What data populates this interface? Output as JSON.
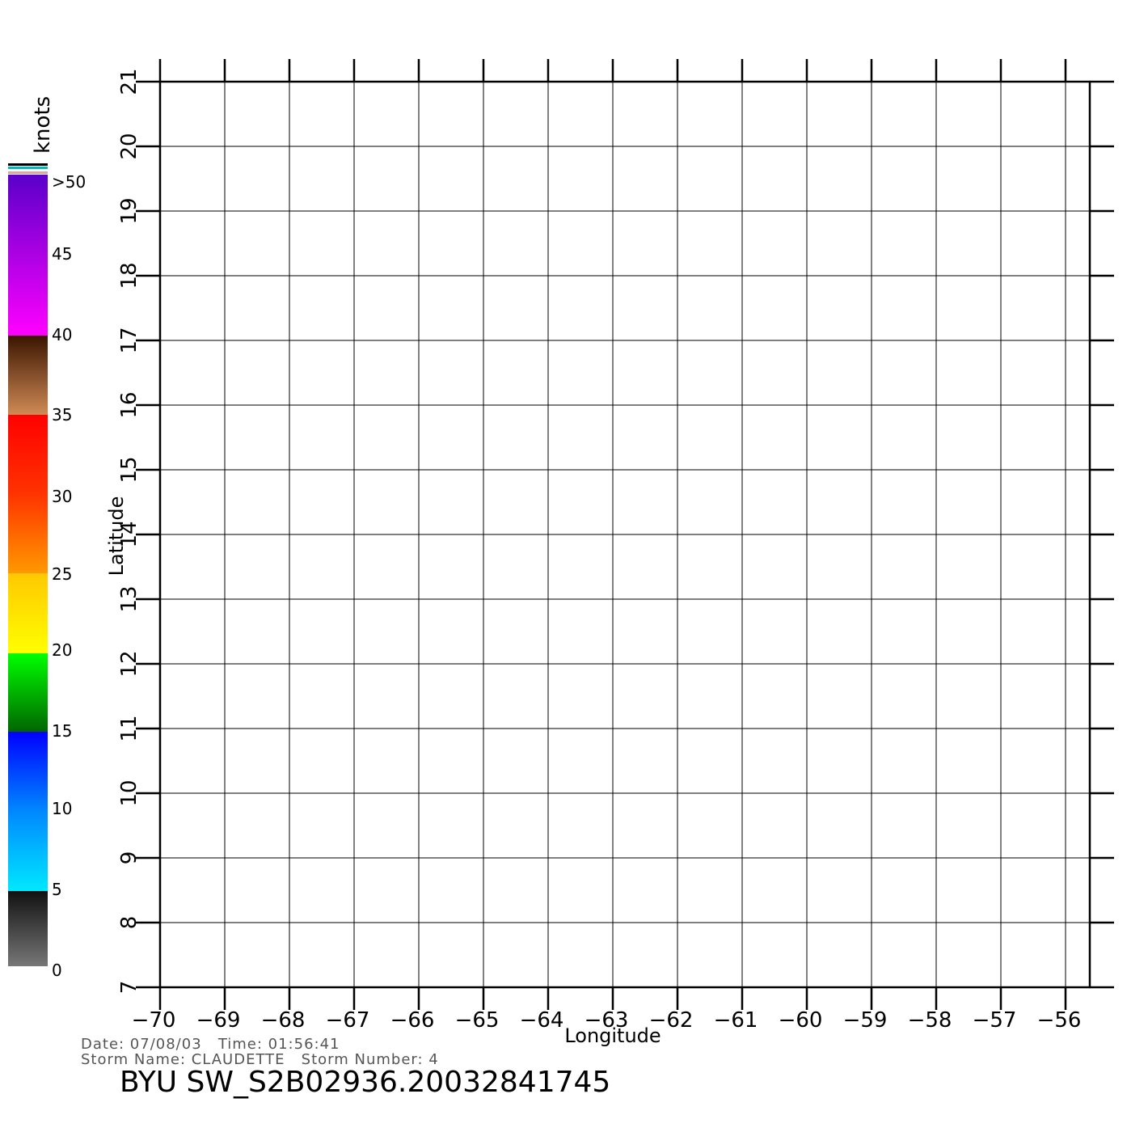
{
  "map": {
    "xlabel": "Longitude",
    "ylabel": "Latitude",
    "lon_range": [
      -70,
      -55.6
    ],
    "lat_range": [
      7,
      21
    ],
    "lon_ticks": [
      "-70",
      "-69",
      "-68",
      "-67",
      "-66",
      "-65",
      "-64",
      "-63",
      "-62",
      "-61",
      "-60",
      "-59",
      "-58",
      "-57",
      "-56"
    ],
    "lat_ticks": [
      "7",
      "8",
      "9",
      "10",
      "11",
      "12",
      "13",
      "14",
      "15",
      "16",
      "17",
      "18",
      "19",
      "20",
      "21"
    ],
    "grid": true
  },
  "legend": {
    "title": "knots",
    "labels": [
      ">50",
      "45",
      "40",
      "35",
      "30",
      "25",
      "20",
      "15",
      "10",
      "5",
      "0"
    ],
    "colors": {
      "gray": "#777777",
      "cyan": "#00e8ff",
      "blue": "#0000ff",
      "green": "#00ff00",
      "dark_green": "#006600",
      "yellow": "#ffff00",
      "orange": "#ff9900",
      "red": "#ff0000",
      "brown": "#3a1500",
      "tan": "#d08a55",
      "magenta": "#ff00ff",
      "purple": "#5a00c8"
    }
  },
  "captions": {
    "date_line": "Date: 07/08/03   Time: 01:56:41",
    "storm_line": "Storm Name: CLAUDETTE   Storm Number: 4",
    "file_line": "BYU SW_S2B02936.20032841745"
  }
}
